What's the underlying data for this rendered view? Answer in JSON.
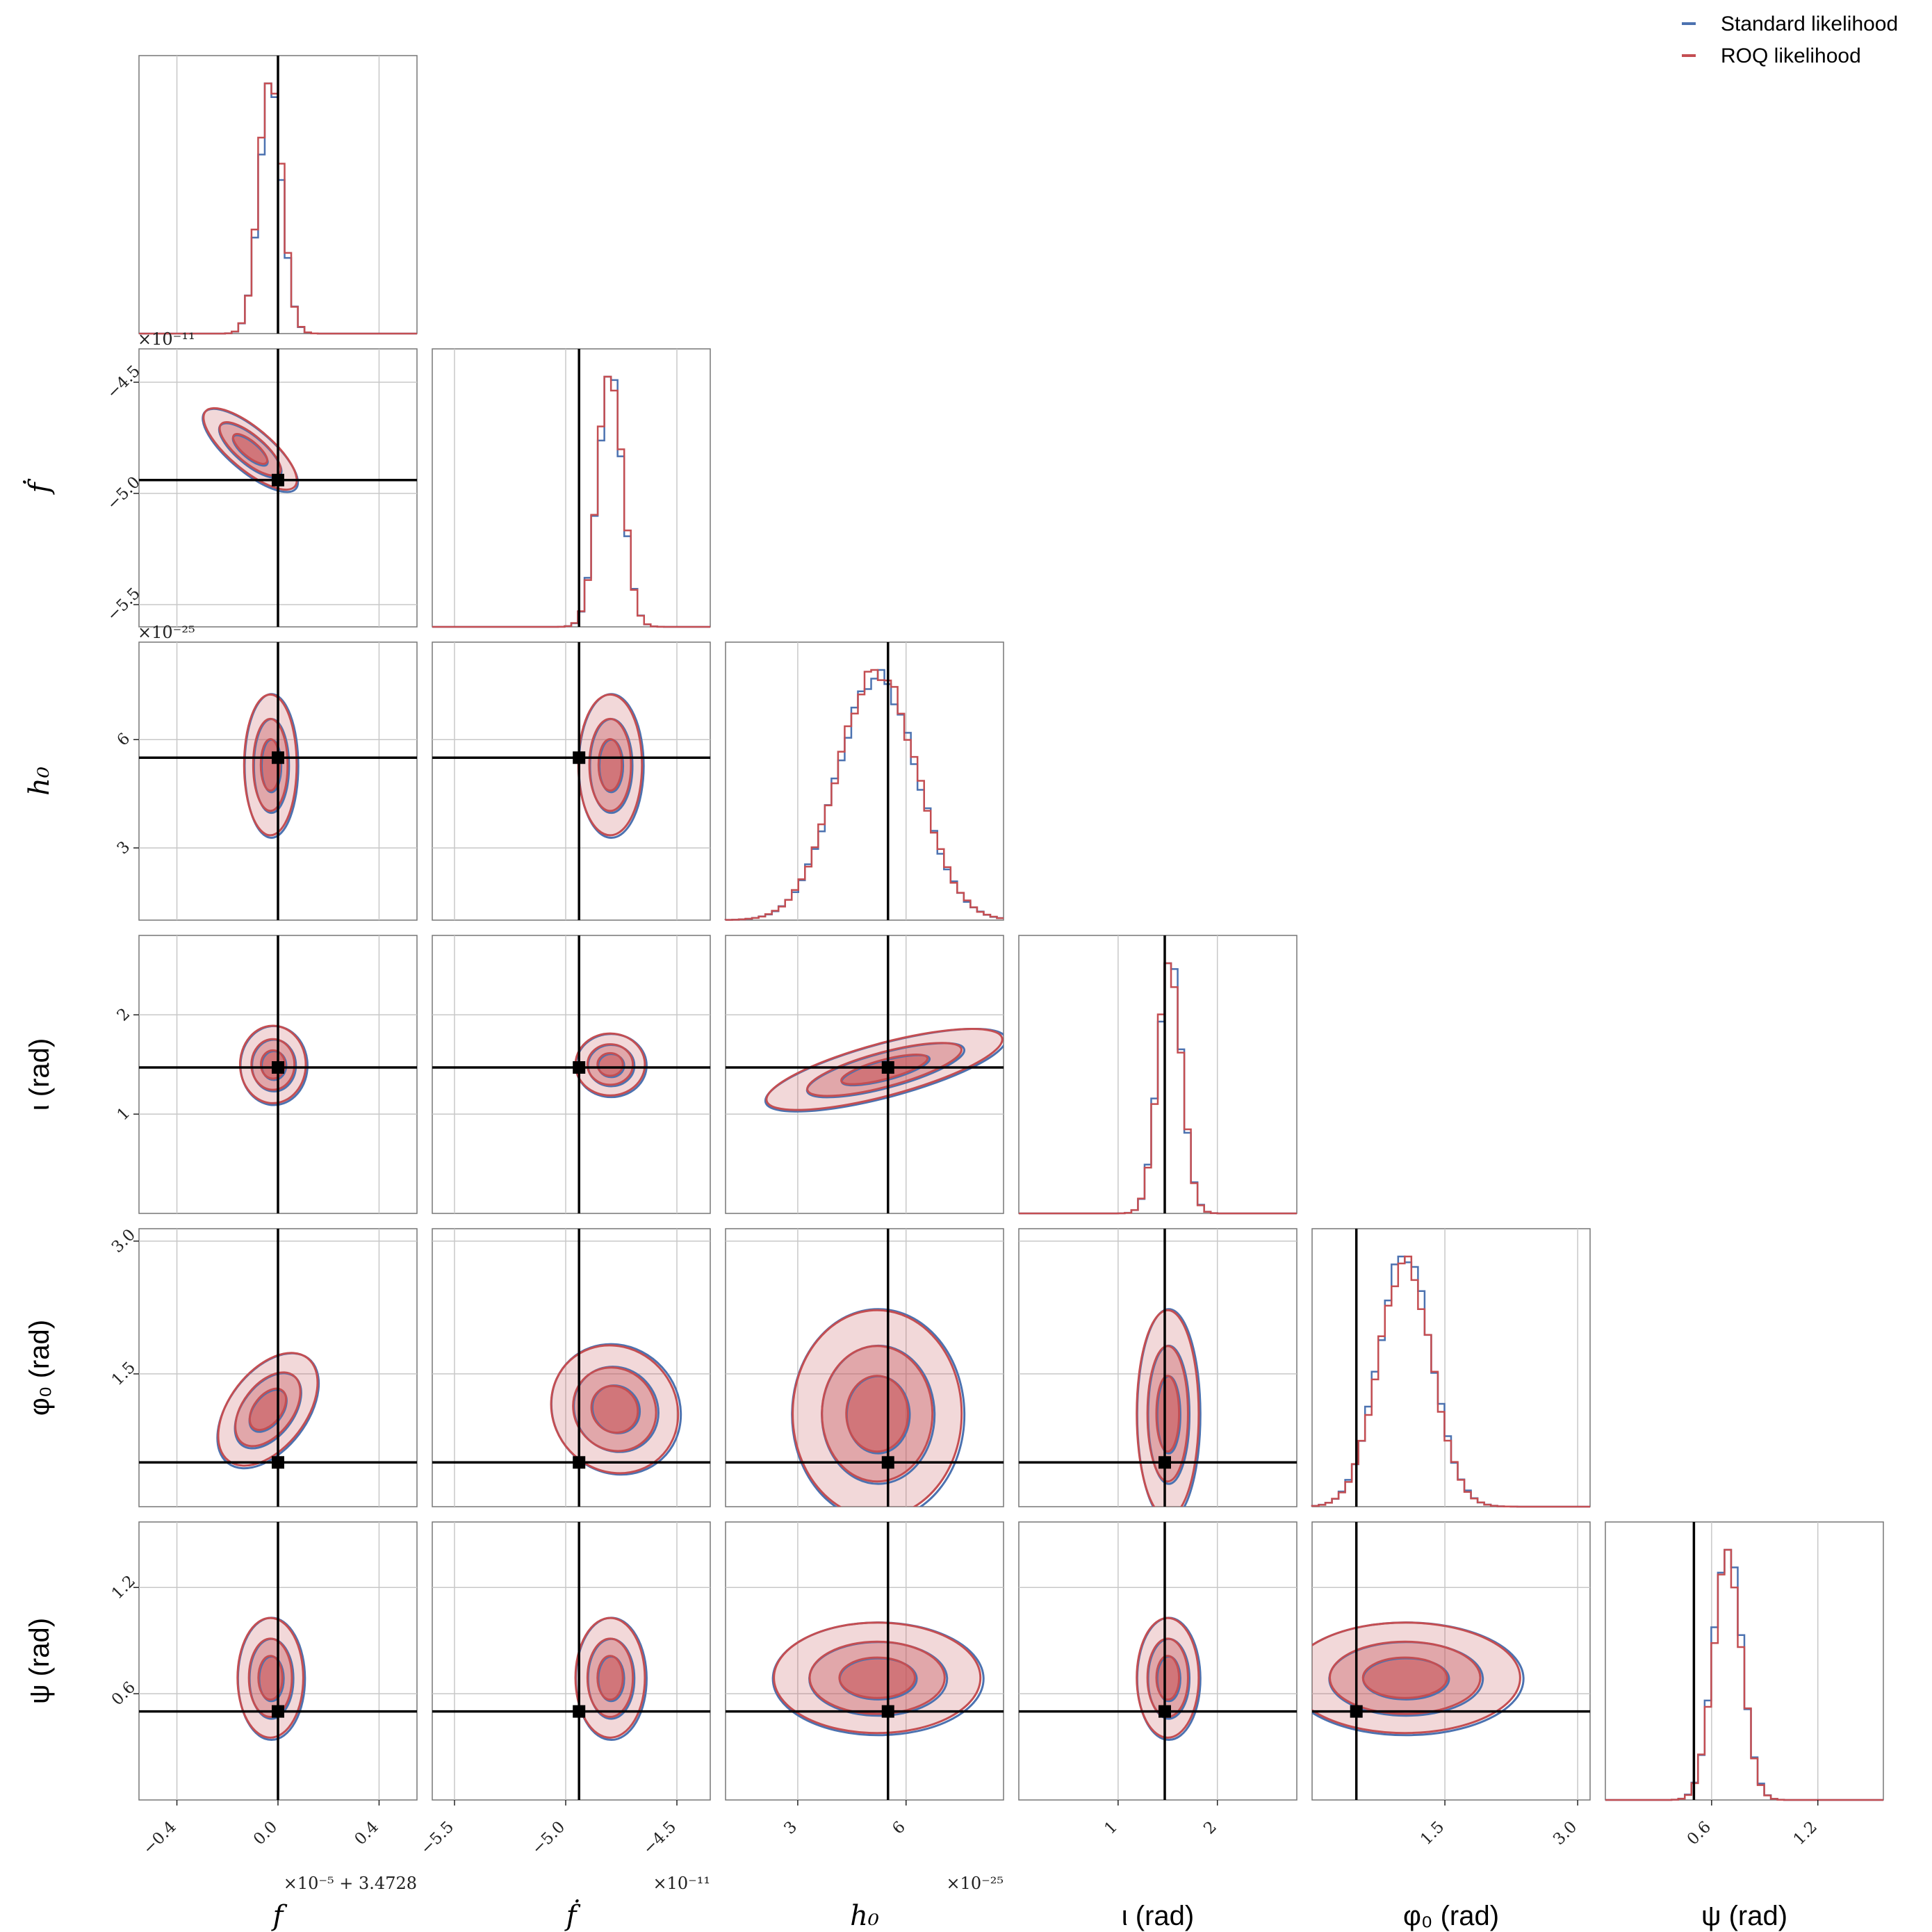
{
  "chart_data": {
    "type": "corner",
    "legend": {
      "placement": "top-right",
      "entries": [
        {
          "label": "Standard likelihood",
          "color": "#4c72b0"
        },
        {
          "label": "ROQ likelihood",
          "color": "#c44e52"
        }
      ]
    },
    "colors": {
      "standard": "#4c72b0",
      "roq": "#c44e52",
      "truth": "#000000",
      "grid": "#c8c8c8"
    },
    "parameters": [
      {
        "key": "f",
        "label": "f",
        "label_style": "math",
        "range": [
          -0.55,
          0.55
        ],
        "truth": 0.0,
        "ticks": [
          -0.4,
          0.0,
          0.4
        ],
        "tick_labels": [
          "−0.4",
          "0.0",
          "0.4"
        ],
        "offset": "×10⁻⁵ + 3.4728",
        "hist_center": -0.03,
        "hist_sigma": 0.045
      },
      {
        "key": "fdot",
        "label": "ḟ",
        "label_style": "math",
        "range": [
          -5.6,
          -4.35
        ],
        "truth": -4.94,
        "ticks": [
          -5.5,
          -5.0,
          -4.5
        ],
        "tick_labels": [
          "−5.5",
          "−5.0",
          "−4.5"
        ],
        "offset": "×10⁻¹¹",
        "hist_center": -4.8,
        "hist_sigma": 0.055
      },
      {
        "key": "h0",
        "label": "h₀",
        "label_style": "math",
        "range": [
          1.0,
          8.7
        ],
        "truth": 5.5,
        "ticks": [
          3,
          6
        ],
        "tick_labels": [
          "3",
          "6"
        ],
        "offset": "×10⁻²⁵",
        "hist_center": 5.2,
        "hist_sigma": 1.1
      },
      {
        "key": "iota",
        "label": "ι (rad)",
        "label_style": "sans",
        "range": [
          0.0,
          2.8
        ],
        "truth": 1.47,
        "ticks": [
          1,
          2
        ],
        "tick_labels": [
          "1",
          "2"
        ],
        "offset": "",
        "hist_center": 1.52,
        "hist_sigma": 0.12
      },
      {
        "key": "phi0",
        "label": "φ₀ (rad)",
        "label_style": "sans",
        "range": [
          0.0,
          3.14
        ],
        "truth": 0.5,
        "ticks": [
          1.5,
          3.0
        ],
        "tick_labels": [
          "1.5",
          "3.0"
        ],
        "offset": "",
        "hist_center": 1.05,
        "hist_sigma": 0.3
      },
      {
        "key": "psi",
        "label": "ψ (rad)",
        "label_style": "sans",
        "range": [
          0.0,
          1.57
        ],
        "truth": 0.5,
        "ticks": [
          0.6,
          1.2
        ],
        "tick_labels": [
          "0.6",
          "1.2"
        ],
        "offset": "",
        "hist_center": 0.69,
        "hist_sigma": 0.08
      }
    ],
    "pairs": [
      {
        "x": "f",
        "y": "fdot",
        "cx": -0.11,
        "cy": -4.8,
        "sx": 0.06,
        "sy": 0.06,
        "rho": -0.8
      },
      {
        "x": "f",
        "y": "h0",
        "cx": -0.03,
        "cy": 5.3,
        "sx": 0.04,
        "sy": 0.75,
        "rho": 0.0
      },
      {
        "x": "fdot",
        "y": "h0",
        "cx": -4.8,
        "cy": 5.3,
        "sx": 0.055,
        "sy": 0.75,
        "rho": 0.0
      },
      {
        "x": "f",
        "y": "iota",
        "cx": -0.02,
        "cy": 1.5,
        "sx": 0.05,
        "sy": 0.15,
        "rho": 0.0
      },
      {
        "x": "fdot",
        "y": "iota",
        "cx": -4.8,
        "cy": 1.5,
        "sx": 0.06,
        "sy": 0.12,
        "rho": 0.0
      },
      {
        "x": "h0",
        "y": "iota",
        "cx": 5.4,
        "cy": 1.45,
        "sx": 1.1,
        "sy": 0.12,
        "rho": 0.3
      },
      {
        "x": "f",
        "y": "phi0",
        "cx": -0.04,
        "cy": 1.1,
        "sx": 0.04,
        "sy": 0.45,
        "rho": -0.75
      },
      {
        "x": "fdot",
        "y": "phi0",
        "cx": -4.78,
        "cy": 1.1,
        "sx": 0.07,
        "sy": 0.5,
        "rho": 0.85
      },
      {
        "x": "h0",
        "y": "phi0",
        "cx": 5.2,
        "cy": 1.05,
        "sx": 0.9,
        "sy": 0.45,
        "rho": 0.0
      },
      {
        "x": "iota",
        "y": "phi0",
        "cx": 1.5,
        "cy": 1.05,
        "sx": 0.12,
        "sy": 0.45,
        "rho": 0.0
      },
      {
        "x": "f",
        "y": "psi",
        "cx": -0.03,
        "cy": 0.69,
        "sx": 0.05,
        "sy": 0.13,
        "rho": 0.0
      },
      {
        "x": "fdot",
        "y": "psi",
        "cx": -4.8,
        "cy": 0.69,
        "sx": 0.06,
        "sy": 0.13,
        "rho": 0.0
      },
      {
        "x": "h0",
        "y": "psi",
        "cx": 5.2,
        "cy": 0.69,
        "sx": 1.1,
        "sy": 0.12,
        "rho": 0.0
      },
      {
        "x": "iota",
        "y": "psi",
        "cx": 1.5,
        "cy": 0.69,
        "sx": 0.12,
        "sy": 0.13,
        "rho": 0.0
      },
      {
        "x": "phi0",
        "y": "psi",
        "cx": 1.05,
        "cy": 0.69,
        "sx": 0.5,
        "sy": 0.12,
        "rho": 0.0
      }
    ]
  }
}
